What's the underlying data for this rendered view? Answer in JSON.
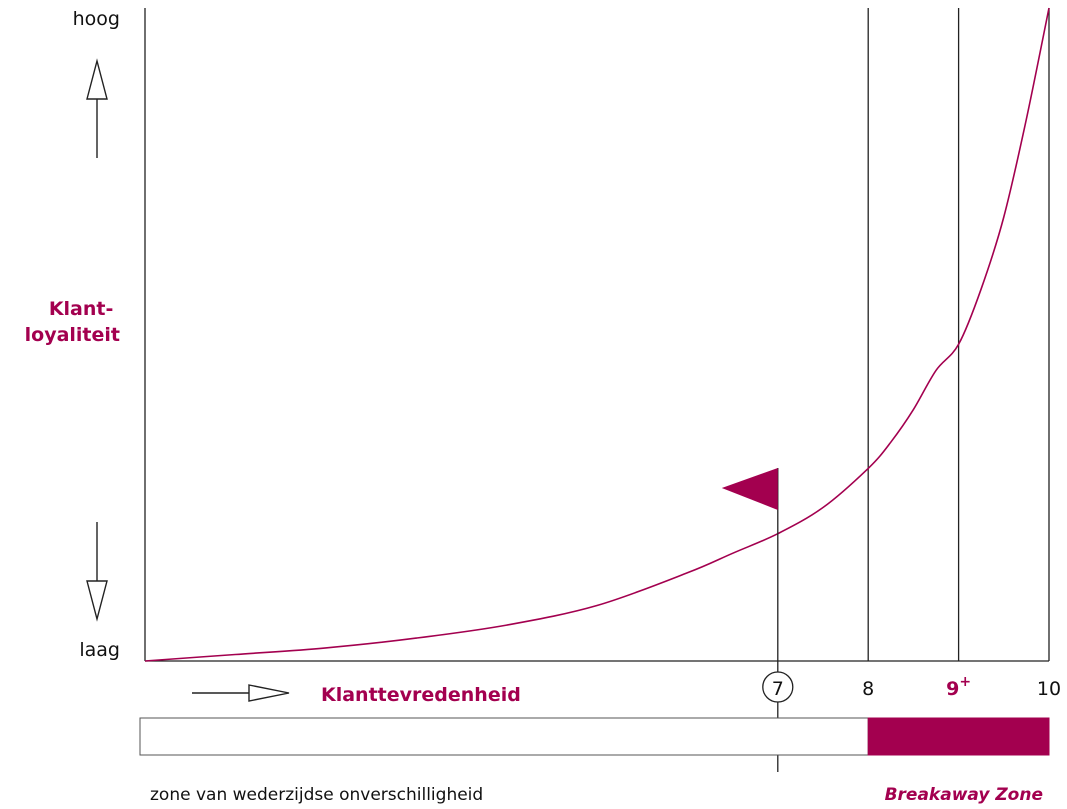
{
  "chart_data": {
    "type": "line",
    "ylabel": "Klant-\nloyaliteit",
    "xlabel": "Klanttevredenheid",
    "y_high_label": "hoog",
    "y_low_label": "laag",
    "x_ticks": [
      {
        "value": 7,
        "label": "7",
        "circled": true
      },
      {
        "value": 8,
        "label": "8"
      },
      {
        "value": 9,
        "label": "9",
        "superscript": "+",
        "accent": true
      },
      {
        "value": 10,
        "label": "10"
      }
    ],
    "ylim": [
      0,
      1
    ],
    "series": [
      {
        "x": [
          0,
          1,
          2,
          3,
          4,
          5,
          6,
          6.5,
          7,
          7.5,
          8,
          8.25,
          8.5,
          8.75,
          9,
          9.25,
          9.5,
          9.75,
          10
        ],
        "y": [
          0,
          0.01,
          0.02,
          0.035,
          0.055,
          0.085,
          0.135,
          0.165,
          0.195,
          0.235,
          0.295,
          0.335,
          0.385,
          0.445,
          0.485,
          0.57,
          0.68,
          0.83,
          1.0
        ]
      }
    ],
    "vertical_lines": [
      8,
      9,
      10
    ],
    "flag_at": 7,
    "zones": [
      {
        "label": "zone van wederzijdse onverschilligheid",
        "from": 0,
        "to": 8,
        "fill": "#ffffff"
      },
      {
        "label": "Breakaway Zone",
        "from": 8,
        "to": 10,
        "fill": "#a3004f"
      }
    ],
    "grid": false,
    "legend": "none"
  },
  "colors": {
    "accent": "#a3004f",
    "axis": "#222222",
    "text": "#111111"
  }
}
